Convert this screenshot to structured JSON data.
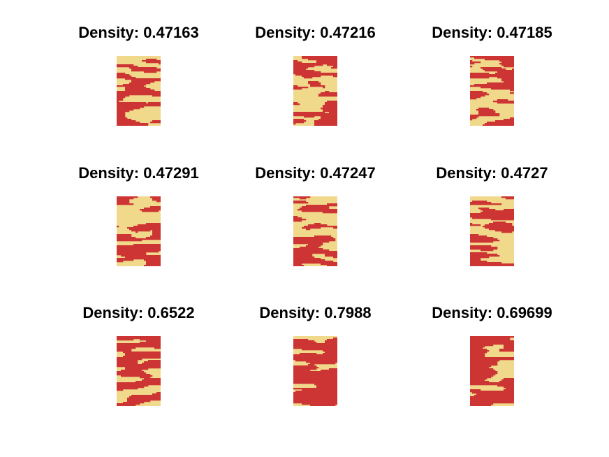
{
  "colors": {
    "occupied": "#cd3535",
    "empty": "#f1d98b",
    "background": "#ffffff",
    "title_text": "#000000"
  },
  "panels": [
    {
      "title": "Density: 0.47163",
      "density": 0.47163
    },
    {
      "title": "Density: 0.47216",
      "density": 0.47216
    },
    {
      "title": "Density: 0.47185",
      "density": 0.47185
    },
    {
      "title": "Density: 0.47291",
      "density": 0.47291
    },
    {
      "title": "Density: 0.47247",
      "density": 0.47247
    },
    {
      "title": "Density: 0.4727",
      "density": 0.4727
    },
    {
      "title": "Density: 0.6522",
      "density": 0.6522
    },
    {
      "title": "Density: 0.7988",
      "density": 0.7988
    },
    {
      "title": "Density: 0.69699",
      "density": 0.69699
    }
  ]
}
